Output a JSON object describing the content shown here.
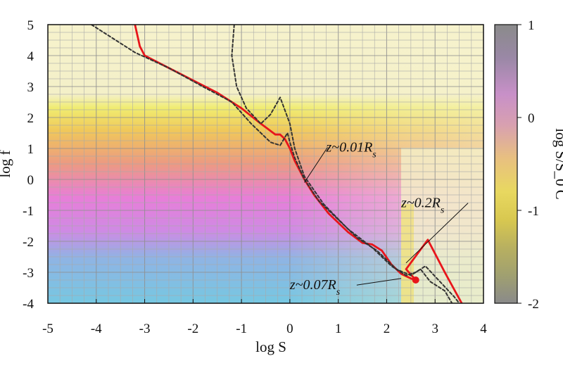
{
  "chart_data": {
    "type": "line",
    "xlabel": "log S",
    "ylabel": "log f",
    "colorbar_label": "log S/S_0 C",
    "xlim": [
      -5,
      4
    ],
    "ylim": [
      -4,
      5
    ],
    "x_ticks": [
      "-5",
      "-4",
      "-3",
      "-2",
      "-1",
      "0",
      "1",
      "2",
      "3",
      "4"
    ],
    "y_ticks": [
      "5",
      "4",
      "3",
      "2",
      "1",
      "0",
      "-1",
      "-2",
      "-3",
      "-4"
    ],
    "colorbar_ticks": [
      "1",
      "0",
      "-1",
      "-2"
    ],
    "colorbar_range": [
      -2,
      1
    ],
    "grid": true,
    "series": [
      {
        "color": "#e8151b",
        "style": "solid",
        "points": [
          [
            -3.2,
            5.0
          ],
          [
            -3.1,
            4.3
          ],
          [
            -3.0,
            4.0
          ],
          [
            -2.5,
            3.6
          ],
          [
            -2.0,
            3.2
          ],
          [
            -1.5,
            2.8
          ],
          [
            -1.0,
            2.3
          ],
          [
            -0.6,
            1.8
          ],
          [
            -0.3,
            1.45
          ],
          [
            -0.2,
            1.45
          ],
          [
            -0.1,
            1.3
          ],
          [
            0.0,
            1.0
          ],
          [
            0.1,
            0.6
          ],
          [
            0.3,
            0.0
          ],
          [
            0.5,
            -0.5
          ],
          [
            0.8,
            -1.1
          ],
          [
            1.2,
            -1.7
          ],
          [
            1.5,
            -2.05
          ],
          [
            1.7,
            -2.1
          ],
          [
            1.9,
            -2.3
          ],
          [
            2.1,
            -2.75
          ],
          [
            2.3,
            -3.05
          ],
          [
            2.5,
            -3.2
          ],
          [
            2.6,
            -3.25
          ],
          [
            2.4,
            -2.9
          ],
          [
            2.85,
            -1.95
          ],
          [
            3.2,
            -3.0
          ],
          [
            3.55,
            -4.0
          ]
        ]
      },
      {
        "color": "#333333",
        "style": "dashed",
        "points": [
          [
            -4.1,
            5.0
          ],
          [
            -3.7,
            4.6
          ],
          [
            -3.2,
            4.1
          ],
          [
            -2.5,
            3.6
          ],
          [
            -1.8,
            3.0
          ],
          [
            -1.2,
            2.5
          ],
          [
            -0.8,
            1.8
          ],
          [
            -0.4,
            1.2
          ],
          [
            -0.2,
            1.1
          ],
          [
            -0.05,
            1.5
          ],
          [
            0.0,
            1.2
          ],
          [
            0.1,
            0.7
          ],
          [
            0.3,
            0.0
          ],
          [
            0.6,
            -0.7
          ],
          [
            1.0,
            -1.3
          ],
          [
            1.4,
            -1.9
          ],
          [
            1.8,
            -2.3
          ],
          [
            2.2,
            -2.9
          ],
          [
            2.5,
            -3.1
          ],
          [
            2.7,
            -2.9
          ],
          [
            2.9,
            -3.3
          ],
          [
            3.2,
            -3.6
          ],
          [
            3.35,
            -4.0
          ]
        ]
      },
      {
        "color": "#333333",
        "style": "dashed",
        "points": [
          [
            -1.15,
            5.0
          ],
          [
            -1.2,
            4.0
          ],
          [
            -1.1,
            3.0
          ],
          [
            -0.9,
            2.3
          ],
          [
            -0.6,
            1.8
          ],
          [
            -0.4,
            2.1
          ],
          [
            -0.2,
            2.65
          ],
          [
            0.0,
            1.8
          ],
          [
            0.1,
            1.0
          ],
          [
            0.3,
            0.1
          ],
          [
            0.7,
            -0.8
          ],
          [
            1.2,
            -1.6
          ],
          [
            1.7,
            -2.2
          ],
          [
            2.1,
            -2.8
          ],
          [
            2.4,
            -3.1
          ],
          [
            2.6,
            -3.0
          ],
          [
            2.8,
            -2.8
          ],
          [
            3.1,
            -3.3
          ],
          [
            3.4,
            -3.8
          ],
          [
            3.5,
            -4.0
          ]
        ]
      }
    ],
    "annotations": [
      {
        "text": "z~0.01R",
        "sub": "s",
        "at": [
          0.75,
          0.9
        ],
        "points_to": [
          0.3,
          -0.1
        ]
      },
      {
        "text": "z~0.2R",
        "sub": "s",
        "at": [
          2.3,
          -0.9
        ],
        "points_to": [
          2.4,
          -2.7
        ]
      },
      {
        "text": "z~0.07R",
        "sub": "s",
        "at": [
          0.0,
          -3.55
        ],
        "points_to": [
          2.3,
          -3.2
        ]
      }
    ]
  }
}
